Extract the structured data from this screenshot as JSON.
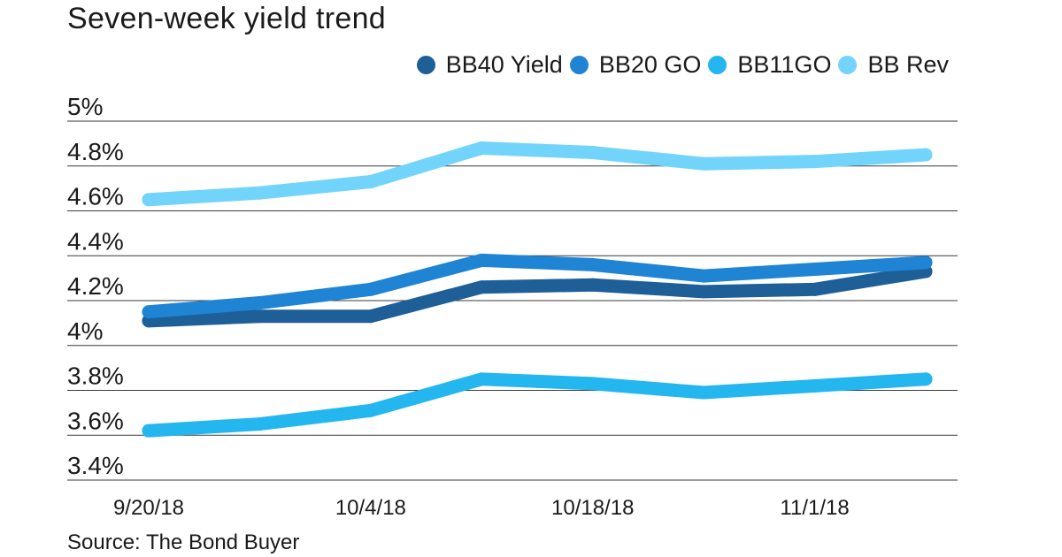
{
  "chart_data": {
    "type": "line",
    "title": "Seven-week yield trend",
    "source": "Source: The Bond Buyer",
    "x_tick_labels": [
      "9/20/18",
      "10/4/18",
      "10/18/18",
      "11/1/18"
    ],
    "x": [
      "9/20/18",
      "9/27/18",
      "10/4/18",
      "10/11/18",
      "10/18/18",
      "10/25/18",
      "11/1/18",
      "11/8/18"
    ],
    "y_ticks": [
      "5%",
      "4.8%",
      "4.6%",
      "4.4%",
      "4.2%",
      "4%",
      "3.8%",
      "3.6%",
      "3.4%"
    ],
    "ylim": [
      3.4,
      5.0
    ],
    "grid": true,
    "legend_position": "top-right",
    "series": [
      {
        "name": "BB40 Yield",
        "color": "#1f5f98",
        "values": [
          4.11,
          4.13,
          4.13,
          4.26,
          4.27,
          4.24,
          4.25,
          4.33
        ]
      },
      {
        "name": "BB20 GO",
        "color": "#1e84d3",
        "values": [
          4.15,
          4.19,
          4.25,
          4.38,
          4.36,
          4.31,
          4.34,
          4.37
        ]
      },
      {
        "name": "BB11GO",
        "color": "#23b6ef",
        "values": [
          3.62,
          3.65,
          3.71,
          3.85,
          3.83,
          3.79,
          3.82,
          3.85
        ]
      },
      {
        "name": "BB Rev",
        "color": "#72d4fb",
        "values": [
          4.65,
          4.68,
          4.73,
          4.88,
          4.86,
          4.81,
          4.82,
          4.85
        ]
      }
    ]
  }
}
